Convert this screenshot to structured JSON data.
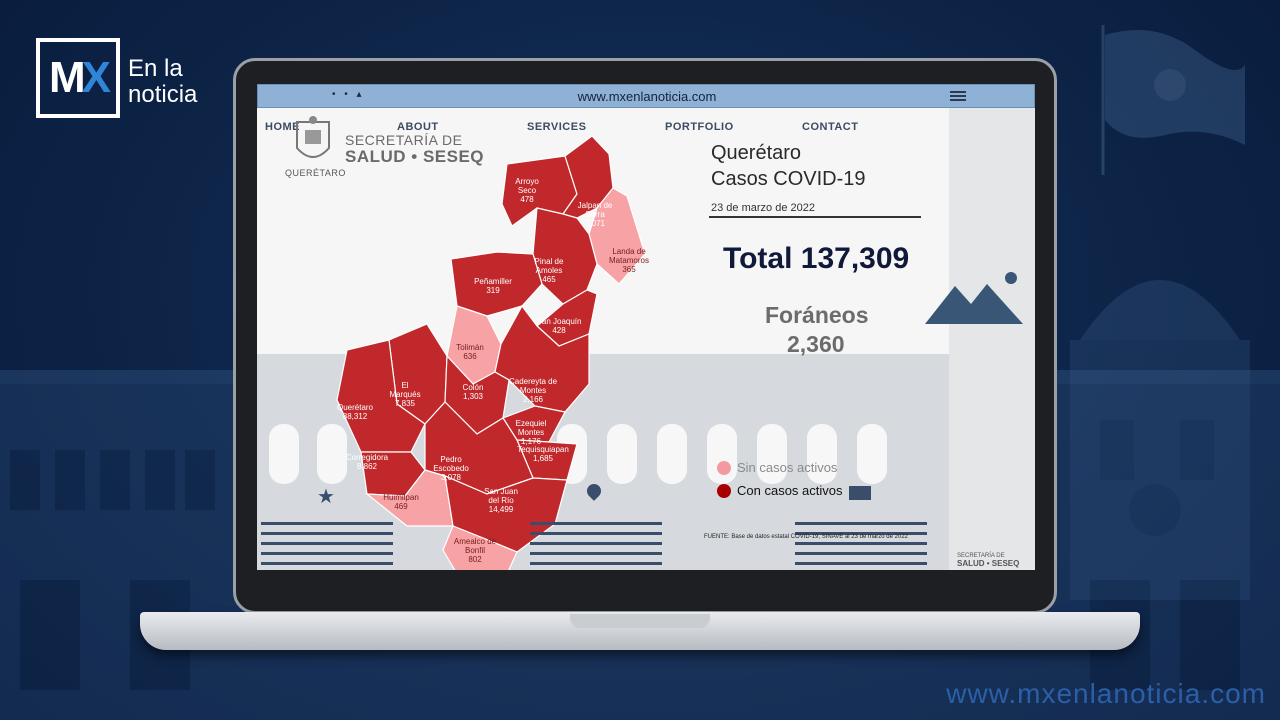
{
  "brand": {
    "mark_left": "M",
    "mark_right": "X",
    "line1": "En la",
    "line2": "noticia"
  },
  "footer_url": "www.mxenlanoticia.com",
  "browser": {
    "url": "www.mxenlanoticia.com"
  },
  "nav": {
    "home": "HOME",
    "about": "ABOUT",
    "services": "SERVICES",
    "portfolio": "PORTFOLIO",
    "contact": "CONTACT"
  },
  "secretaria": {
    "line1": "SECRETARÍA DE",
    "line2": "SALUD • SESEQ",
    "seal_caption": "QUERÉTARO"
  },
  "header": {
    "state": "Querétaro",
    "subtitle": "Casos COVID-19",
    "date": "23 de marzo de 2022"
  },
  "total": {
    "label": "Total",
    "value": "137,309"
  },
  "foraneos": {
    "label": "Foráneos",
    "value": "2,360"
  },
  "legend": {
    "sin": {
      "label": "Sin casos activos",
      "color": "#f29aa0"
    },
    "con": {
      "label": "Con casos activos",
      "color": "#a80000"
    }
  },
  "colors": {
    "active": "#c0282b",
    "inactive": "#f7a3a6",
    "border": "#ffffff"
  },
  "municipalities": [
    {
      "name": "Arroyo Seco",
      "value": "478",
      "active": true
    },
    {
      "name": "Jalpan de Serra",
      "value": "2,071",
      "active": true
    },
    {
      "name": "Landa de Matamoros",
      "value": "365",
      "active": false
    },
    {
      "name": "Pinal de Amoles",
      "value": "465",
      "active": true
    },
    {
      "name": "Peñamiller",
      "value": "319",
      "active": true
    },
    {
      "name": "San Joaquín",
      "value": "428",
      "active": true
    },
    {
      "name": "Tolimán",
      "value": "636",
      "active": false
    },
    {
      "name": "Cadereyta de Montes",
      "value": "2,166",
      "active": true
    },
    {
      "name": "El Marqués",
      "value": "7,835",
      "active": true
    },
    {
      "name": "Colón",
      "value": "1,303",
      "active": true
    },
    {
      "name": "Querétaro",
      "value": "88,312",
      "active": true
    },
    {
      "name": "Ezequiel Montes",
      "value": "1,176",
      "active": true
    },
    {
      "name": "Corregidora",
      "value": "8,862",
      "active": true
    },
    {
      "name": "Tequisquiapan",
      "value": "1,685",
      "active": true
    },
    {
      "name": "Pedro Escobedo",
      "value": "3,078",
      "active": true
    },
    {
      "name": "Huimilpan",
      "value": "469",
      "active": false
    },
    {
      "name": "San Juan del Río",
      "value": "14,499",
      "active": true
    },
    {
      "name": "Amealco de Bonfil",
      "value": "802",
      "active": false
    }
  ],
  "source": "FUENTE: Base de datos estatal COVID-19, SINAVE al 23 de marzo de 2022",
  "small_logo": {
    "line1": "SECRETARÍA DE",
    "line2": "SALUD • SESEQ"
  }
}
